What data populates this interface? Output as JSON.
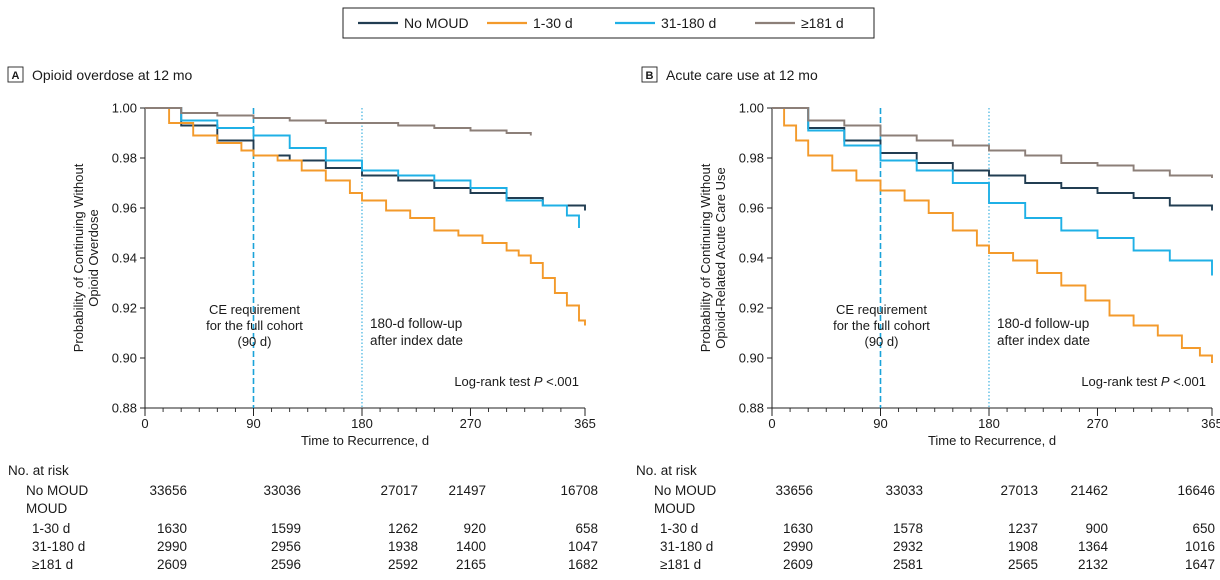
{
  "legend": {
    "items": [
      {
        "label": "No MOUD",
        "color": "#213d52"
      },
      {
        "label": "1-30 d",
        "color": "#f39a2b"
      },
      {
        "label": "31-180 d",
        "color": "#1fb0e6"
      },
      {
        "label": "≥181 d",
        "color": "#8c7f78"
      }
    ]
  },
  "chart_data": [
    {
      "type": "line",
      "panel_letter": "A",
      "title": "Opioid overdose at 12 mo",
      "xlabel": "Time to Recurrence, d",
      "ylabel_lines": [
        "Probability of Continuing Without",
        "Opioid Overdose"
      ],
      "xlim": [
        0,
        365
      ],
      "ylim": [
        0.88,
        1.0
      ],
      "xticks": [
        0,
        90,
        180,
        270,
        365
      ],
      "yticks": [
        0.88,
        0.9,
        0.92,
        0.94,
        0.96,
        0.98,
        1.0
      ],
      "ytick_labels": [
        "0.88",
        "0.90",
        "0.92",
        "0.94",
        "0.96",
        "0.98",
        "1.00"
      ],
      "grid": false,
      "legend_position": "top-center",
      "series": [
        {
          "name": "No MOUD",
          "color": "#213d52",
          "x": [
            0,
            30,
            60,
            90,
            120,
            150,
            180,
            210,
            240,
            270,
            300,
            330,
            365
          ],
          "y": [
            1.0,
            0.993,
            0.987,
            0.981,
            0.979,
            0.976,
            0.973,
            0.971,
            0.968,
            0.966,
            0.964,
            0.961,
            0.959
          ]
        },
        {
          "name": "1-30 d",
          "color": "#f39a2b",
          "x": [
            0,
            20,
            40,
            60,
            80,
            90,
            110,
            130,
            150,
            170,
            180,
            200,
            220,
            240,
            260,
            280,
            300,
            310,
            320,
            330,
            340,
            350,
            360,
            365
          ],
          "y": [
            1.0,
            0.994,
            0.989,
            0.986,
            0.983,
            0.981,
            0.979,
            0.975,
            0.971,
            0.966,
            0.963,
            0.959,
            0.956,
            0.951,
            0.949,
            0.946,
            0.943,
            0.941,
            0.938,
            0.932,
            0.926,
            0.921,
            0.915,
            0.913
          ]
        },
        {
          "name": "31-180 d",
          "color": "#1fb0e6",
          "x": [
            0,
            30,
            60,
            90,
            120,
            150,
            180,
            210,
            240,
            270,
            300,
            330,
            350,
            360
          ],
          "y": [
            1.0,
            0.995,
            0.992,
            0.989,
            0.984,
            0.979,
            0.975,
            0.973,
            0.971,
            0.968,
            0.963,
            0.961,
            0.957,
            0.952
          ]
        },
        {
          "name": "≥181 d",
          "color": "#8c7f78",
          "x": [
            0,
            30,
            60,
            90,
            120,
            150,
            180,
            210,
            240,
            270,
            300,
            320
          ],
          "y": [
            1.0,
            0.998,
            0.997,
            0.996,
            0.995,
            0.994,
            0.994,
            0.993,
            0.992,
            0.991,
            0.99,
            0.989
          ]
        }
      ],
      "annotations": {
        "ce_lines": [
          "CE requirement",
          "for the full cohort",
          "(90 d)"
        ],
        "ce_x": 90,
        "followup_lines": [
          "180-d follow-up",
          "after index date"
        ],
        "followup_x": 180,
        "logrank_prefix": "Log-rank test ",
        "logrank_p": "P",
        "logrank_value": " <.001"
      },
      "risk_table": {
        "header": "No. at risk",
        "group_label": "MOUD",
        "rows": [
          {
            "label": "No MOUD",
            "values": [
              "33656",
              "33036",
              "27017",
              "21497",
              "16708"
            ]
          },
          {
            "label": "1-30 d",
            "values": [
              "1630",
              "1599",
              "1262",
              "920",
              "658"
            ]
          },
          {
            "label": "31-180 d",
            "values": [
              "2990",
              "2956",
              "1938",
              "1400",
              "1047"
            ]
          },
          {
            "label": "≥181 d",
            "values": [
              "2609",
              "2596",
              "2592",
              "2165",
              "1682"
            ]
          }
        ]
      }
    },
    {
      "type": "line",
      "panel_letter": "B",
      "title": "Acute care use at 12 mo",
      "xlabel": "Time to Recurrence, d",
      "ylabel_lines": [
        "Probability of Continuing Without",
        "Opioid-Related Acute Care Use"
      ],
      "xlim": [
        0,
        365
      ],
      "ylim": [
        0.88,
        1.0
      ],
      "xticks": [
        0,
        90,
        180,
        270,
        365
      ],
      "yticks": [
        0.88,
        0.9,
        0.92,
        0.94,
        0.96,
        0.98,
        1.0
      ],
      "ytick_labels": [
        "0.88",
        "0.90",
        "0.92",
        "0.94",
        "0.96",
        "0.98",
        "1.00"
      ],
      "grid": false,
      "legend_position": "top-center",
      "series": [
        {
          "name": "No MOUD",
          "color": "#213d52",
          "x": [
            0,
            30,
            60,
            90,
            120,
            150,
            180,
            210,
            240,
            270,
            300,
            330,
            365
          ],
          "y": [
            1.0,
            0.992,
            0.987,
            0.982,
            0.978,
            0.975,
            0.973,
            0.97,
            0.968,
            0.966,
            0.964,
            0.961,
            0.959
          ]
        },
        {
          "name": "1-30 d",
          "color": "#f39a2b",
          "x": [
            0,
            10,
            20,
            30,
            50,
            70,
            90,
            110,
            130,
            150,
            170,
            180,
            200,
            220,
            240,
            260,
            280,
            300,
            320,
            340,
            355,
            365
          ],
          "y": [
            1.0,
            0.993,
            0.987,
            0.981,
            0.975,
            0.971,
            0.967,
            0.963,
            0.958,
            0.951,
            0.945,
            0.942,
            0.939,
            0.934,
            0.929,
            0.923,
            0.917,
            0.913,
            0.909,
            0.904,
            0.901,
            0.898
          ]
        },
        {
          "name": "31-180 d",
          "color": "#1fb0e6",
          "x": [
            0,
            30,
            60,
            90,
            120,
            150,
            180,
            210,
            240,
            270,
            300,
            330,
            365
          ],
          "y": [
            1.0,
            0.991,
            0.985,
            0.979,
            0.975,
            0.97,
            0.962,
            0.956,
            0.951,
            0.948,
            0.943,
            0.939,
            0.933
          ]
        },
        {
          "name": "≥181 d",
          "color": "#8c7f78",
          "x": [
            0,
            30,
            60,
            90,
            120,
            150,
            180,
            210,
            240,
            270,
            300,
            330,
            365
          ],
          "y": [
            1.0,
            0.995,
            0.993,
            0.989,
            0.987,
            0.985,
            0.983,
            0.981,
            0.978,
            0.977,
            0.975,
            0.973,
            0.972
          ]
        }
      ],
      "annotations": {
        "ce_lines": [
          "CE requirement",
          "for the full cohort",
          "(90 d)"
        ],
        "ce_x": 90,
        "followup_lines": [
          "180-d follow-up",
          "after index date"
        ],
        "followup_x": 180,
        "logrank_prefix": "Log-rank test ",
        "logrank_p": "P",
        "logrank_value": " <.001"
      },
      "risk_table": {
        "header": "No. at risk",
        "group_label": "MOUD",
        "rows": [
          {
            "label": "No MOUD",
            "values": [
              "33656",
              "33033",
              "27013",
              "21462",
              "16646"
            ]
          },
          {
            "label": "1-30 d",
            "values": [
              "1630",
              "1578",
              "1237",
              "900",
              "650"
            ]
          },
          {
            "label": "31-180 d",
            "values": [
              "2990",
              "2932",
              "1908",
              "1364",
              "1016"
            ]
          },
          {
            "label": "≥181 d",
            "values": [
              "2609",
              "2581",
              "2565",
              "2132",
              "1647"
            ]
          }
        ]
      }
    }
  ]
}
